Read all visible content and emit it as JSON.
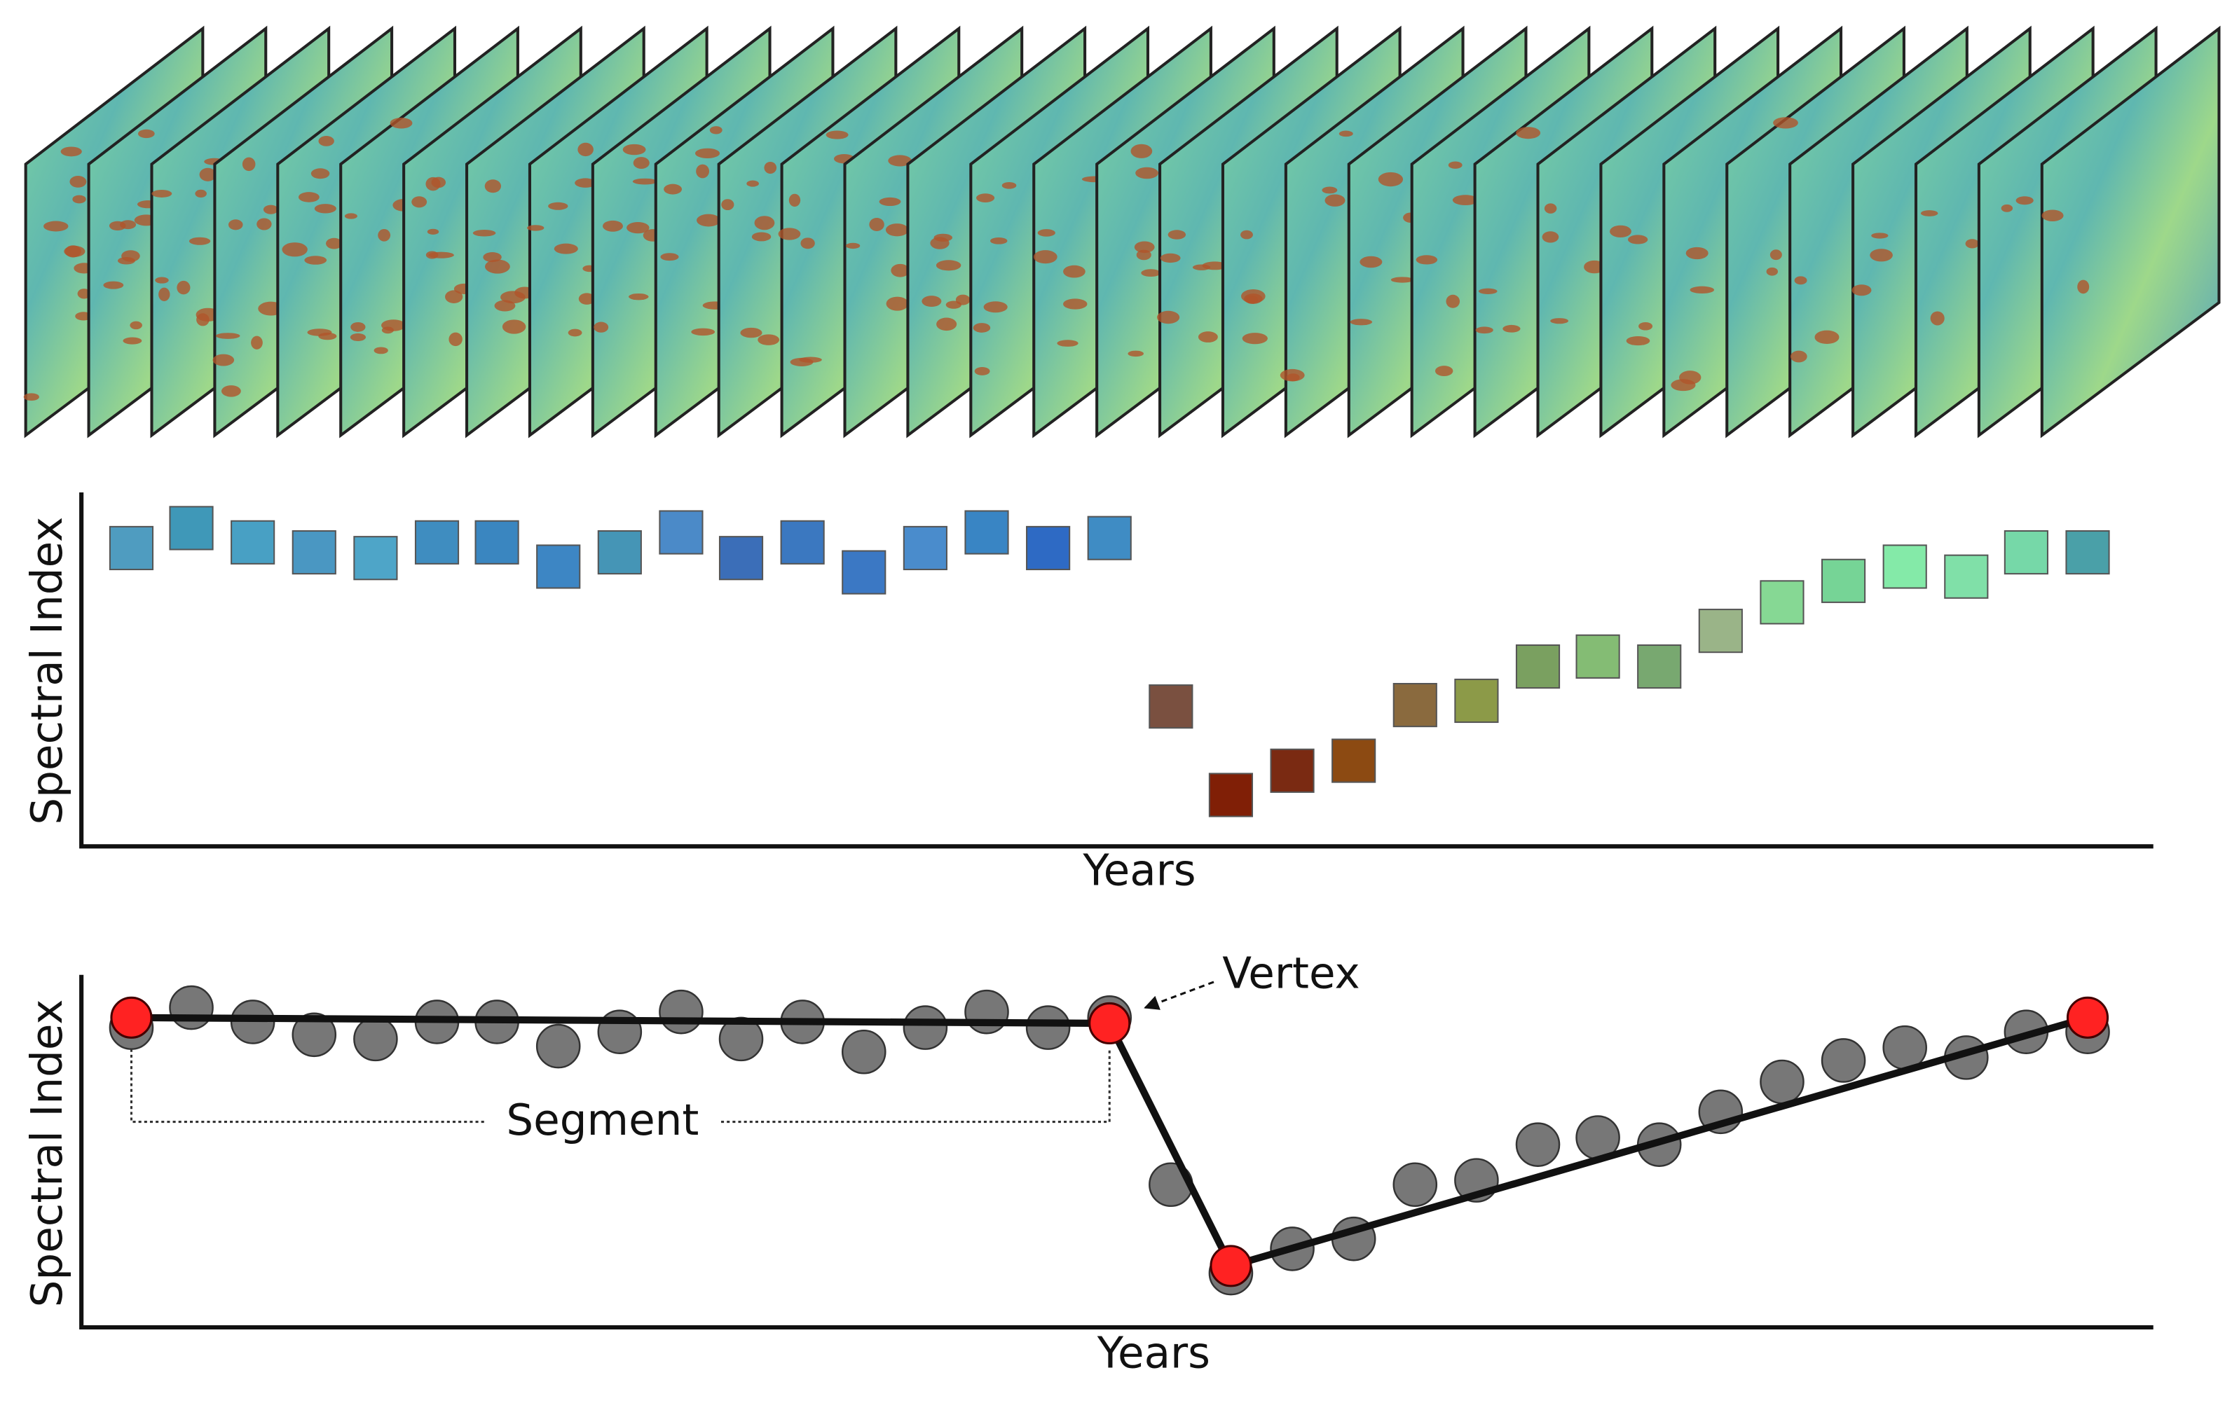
{
  "panels": [
    {
      "y_label": "Spectral Index",
      "x_label": "Years"
    },
    {
      "y_label": "Spectral Index",
      "x_label": "Years",
      "annotations": {
        "vertex": "Vertex",
        "segment": "Segment"
      }
    }
  ]
}
